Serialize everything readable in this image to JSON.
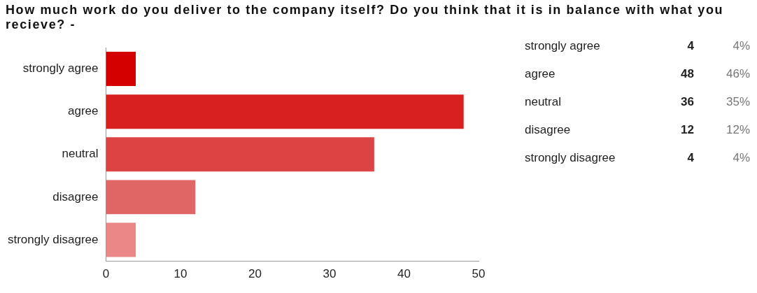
{
  "chart_data": {
    "type": "bar",
    "orientation": "horizontal",
    "title": "How much work do you deliver to the company itself? Do you think that it is in balance with what you recieve? -",
    "categories": [
      "strongly agree",
      "agree",
      "neutral",
      "disagree",
      "strongly disagree"
    ],
    "values": [
      4,
      48,
      36,
      12,
      4
    ],
    "colors": [
      "#d40000",
      "#d82020",
      "#dc4444",
      "#e06666",
      "#ea8888"
    ],
    "xlim": [
      0,
      50
    ],
    "xticks": [
      0,
      10,
      20,
      30,
      40,
      50
    ],
    "annotations": [
      "strongly agree",
      "4",
      "4%",
      "agree",
      "48",
      "46%",
      "neutral",
      "36",
      "35%",
      "disagree",
      "12",
      "12%",
      "strongly disagree",
      "4",
      "4%"
    ]
  }
}
